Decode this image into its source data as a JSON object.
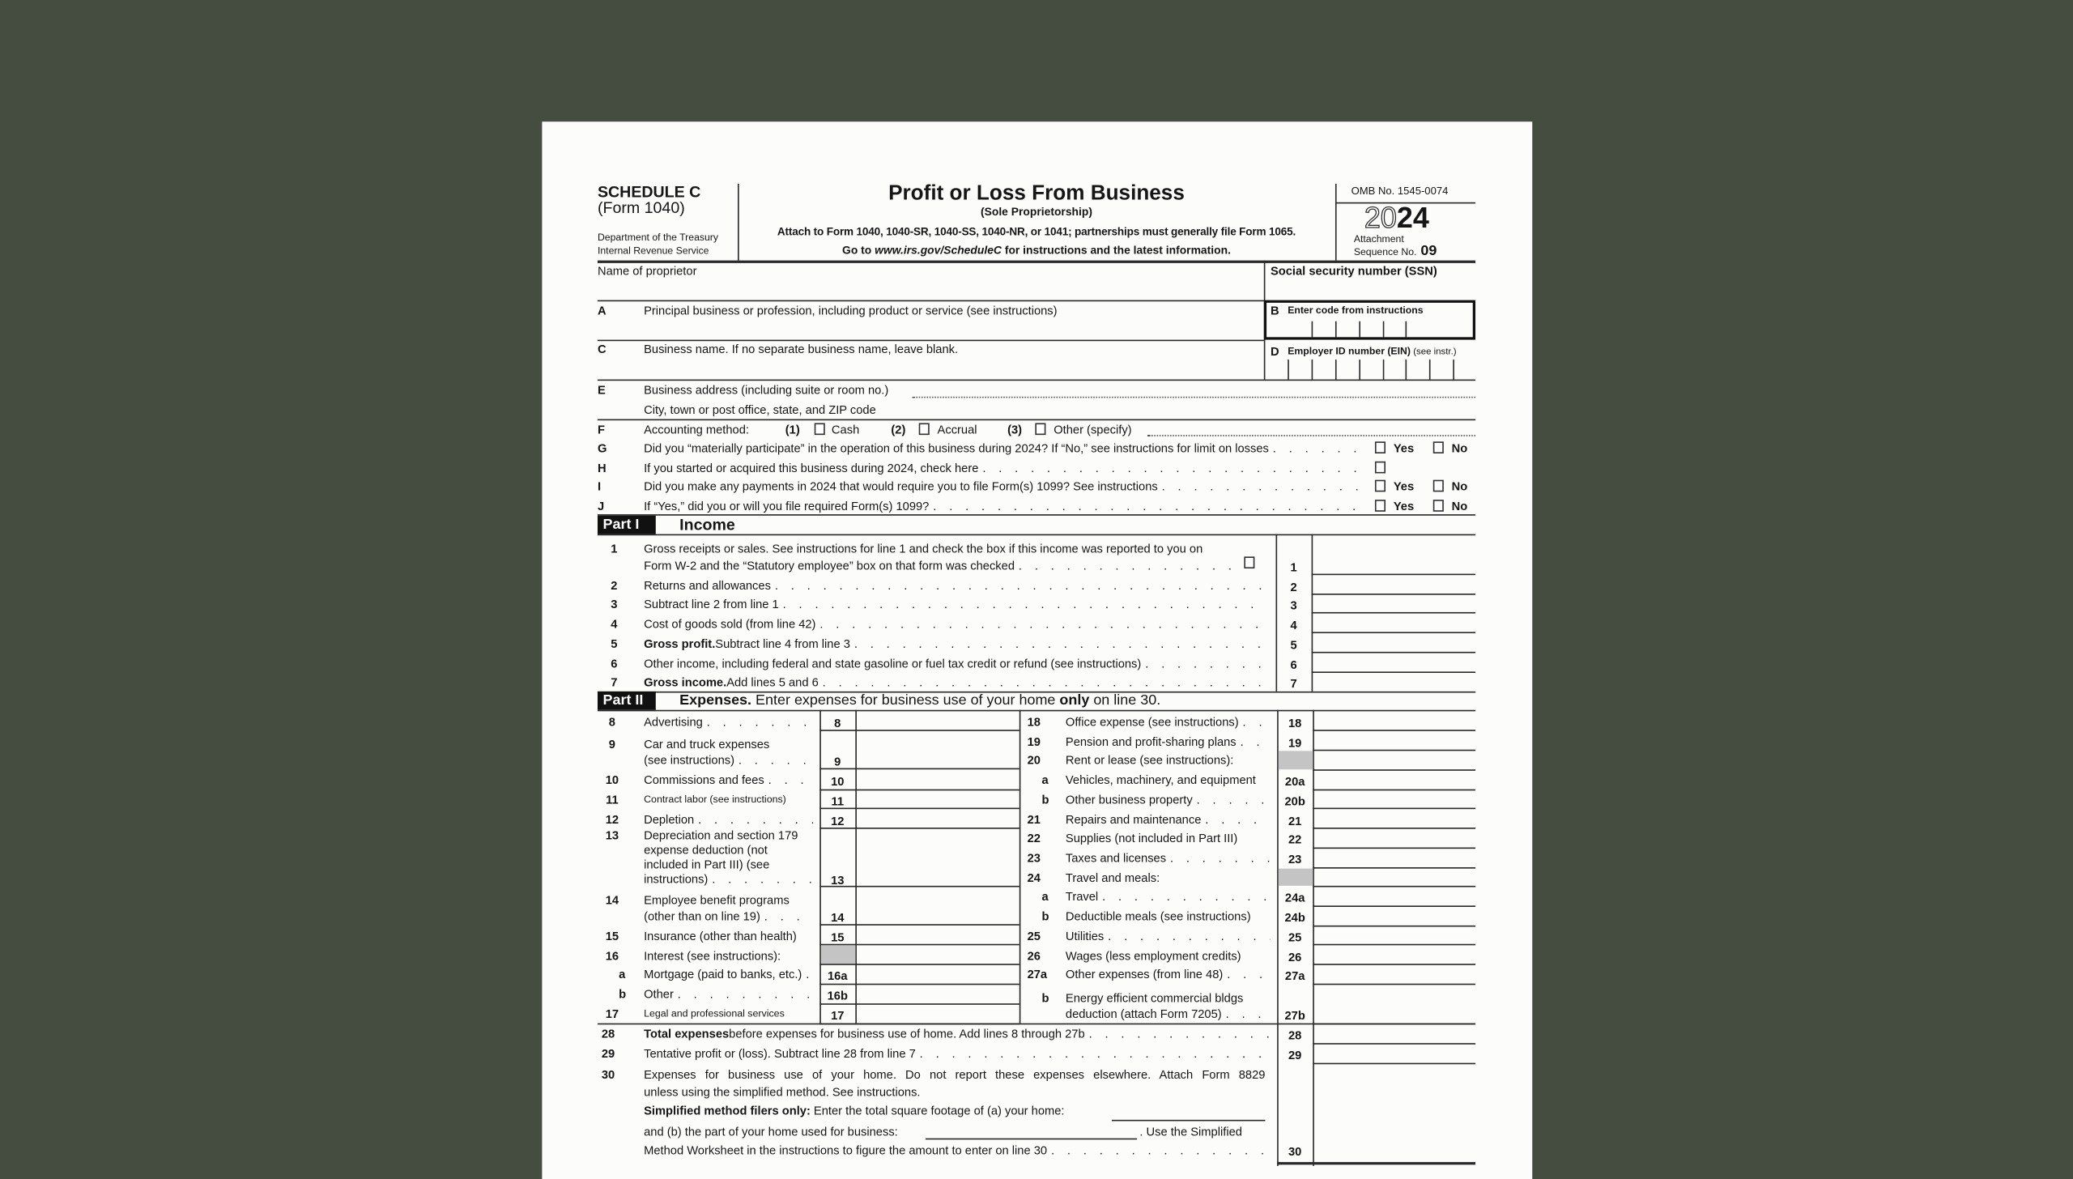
{
  "header": {
    "schedule": "SCHEDULE C",
    "form_number": "(Form 1040)",
    "dept": "Department of the Treasury",
    "irs": "Internal Revenue Service",
    "title": "Profit or Loss From Business",
    "subtitle": "(Sole Proprietorship)",
    "attach": "Attach to Form 1040, 1040-SR, 1040-SS, 1040-NR, or 1041; partnerships must generally file Form 1065.",
    "goto_prefix": "Go to ",
    "goto_url": "www.irs.gov/ScheduleC",
    "goto_suffix": " for instructions and the latest information.",
    "omb": "OMB No. 1545-0074",
    "year_outline": "20",
    "year_bold": "24",
    "attachment": "Attachment",
    "sequence_label": "Sequence No.",
    "sequence": "09"
  },
  "top": {
    "name_label": "Name of proprietor",
    "ssn_label": "Social security number (SSN)",
    "a_letter": "A",
    "a_label": "Principal business or profession, including product or service (see instructions)",
    "b_letter": "B",
    "b_label": "Enter code from instructions",
    "c_letter": "C",
    "c_label": "Business name. If no separate business name, leave blank.",
    "d_letter": "D",
    "d_label": "Employer ID number (EIN)",
    "d_note": "(see instr.)",
    "e_letter": "E",
    "e_label": "Business address (including suite or room no.)",
    "e_city": "City, town or post office, state, and ZIP code",
    "f_letter": "F",
    "f_label": "Accounting method:",
    "f_opts": [
      {
        "num": "(1)",
        "label": "Cash"
      },
      {
        "num": "(2)",
        "label": "Accrual"
      },
      {
        "num": "(3)",
        "label": "Other (specify)"
      }
    ],
    "questions": [
      {
        "letter": "G",
        "text": "Did you “materially participate” in the operation of this business during 2024? If “No,” see instructions for limit on losses",
        "yes": "Yes",
        "no": "No"
      },
      {
        "letter": "H",
        "text": "If you started or acquired this business during 2024, check here"
      },
      {
        "letter": "I",
        "text": "Did you make any payments in 2024 that would require you to file Form(s) 1099? See instructions",
        "yes": "Yes",
        "no": "No"
      },
      {
        "letter": "J",
        "text": "If “Yes,” did you or will you file required Form(s) 1099?",
        "yes": "Yes",
        "no": "No"
      }
    ]
  },
  "part1": {
    "tag": "Part I",
    "title": "Income",
    "lines": [
      {
        "num": "1",
        "text": "Gross receipts or sales. See instructions for line 1 and check the box if this income was reported to you on",
        "text2": "Form W-2 and the “Statutory employee” box on that form was checked",
        "box": "1"
      },
      {
        "num": "2",
        "text": "Returns and allowances",
        "box": "2"
      },
      {
        "num": "3",
        "text": "Subtract line 2 from line 1",
        "box": "3"
      },
      {
        "num": "4",
        "text": "Cost of goods sold (from line 42)",
        "box": "4"
      },
      {
        "num": "5",
        "bold": "Gross profit.",
        "text": " Subtract line 4 from line 3",
        "box": "5"
      },
      {
        "num": "6",
        "text": "Other income, including federal and state gasoline or fuel tax credit or refund (see instructions)",
        "box": "6"
      },
      {
        "num": "7",
        "bold": "Gross income.",
        "text": " Add lines 5 and 6",
        "box": "7"
      }
    ]
  },
  "part2": {
    "tag": "Part II",
    "title_bold": "Expenses.",
    "title_rest": " Enter expenses for business use of your home ",
    "title_only": "only",
    "title_end": " on line 30.",
    "left": [
      {
        "num": "8",
        "lines": [
          "Advertising"
        ],
        "box": "8"
      },
      {
        "num": "9",
        "lines": [
          "Car and truck expenses",
          "(see instructions)"
        ],
        "box": "9"
      },
      {
        "num": "10",
        "lines": [
          "Commissions and fees"
        ],
        "box": "10"
      },
      {
        "num": "11",
        "lines": [
          "Contract labor (see instructions)"
        ],
        "box": "11"
      },
      {
        "num": "12",
        "lines": [
          "Depletion"
        ],
        "box": "12"
      },
      {
        "num": "13",
        "lines": [
          "Depreciation and section 179",
          "expense deduction (not",
          "included in Part III) (see",
          "instructions)"
        ],
        "box": "13"
      },
      {
        "num": "14",
        "lines": [
          "Employee benefit programs",
          "(other than on line 19)"
        ],
        "box": "14"
      },
      {
        "num": "15",
        "lines": [
          "Insurance (other than health)"
        ],
        "box": "15"
      },
      {
        "num": "16",
        "lines": [
          "Interest (see instructions):"
        ],
        "box": ""
      },
      {
        "num": "a",
        "lines": [
          "Mortgage (paid to banks, etc.)"
        ],
        "box": "16a"
      },
      {
        "num": "b",
        "lines": [
          "Other"
        ],
        "box": "16b"
      },
      {
        "num": "17",
        "lines": [
          "Legal and professional services"
        ],
        "box": "17"
      }
    ],
    "right": [
      {
        "num": "18",
        "lines": [
          "Office expense (see instructions)"
        ],
        "box": "18"
      },
      {
        "num": "19",
        "lines": [
          "Pension and profit-sharing plans"
        ],
        "box": "19"
      },
      {
        "num": "20",
        "lines": [
          "Rent or lease (see instructions):"
        ],
        "box": ""
      },
      {
        "num": "a",
        "lines": [
          "Vehicles, machinery, and equipment"
        ],
        "box": "20a"
      },
      {
        "num": "b",
        "lines": [
          "Other business property"
        ],
        "box": "20b"
      },
      {
        "num": "21",
        "lines": [
          "Repairs and maintenance"
        ],
        "box": "21"
      },
      {
        "num": "22",
        "lines": [
          "Supplies (not included in Part III)"
        ],
        "box": "22"
      },
      {
        "num": "23",
        "lines": [
          "Taxes and licenses"
        ],
        "box": "23"
      },
      {
        "num": "24",
        "lines": [
          "Travel and meals:"
        ],
        "box": ""
      },
      {
        "num": "a",
        "lines": [
          "Travel"
        ],
        "box": "24a"
      },
      {
        "num": "b",
        "lines": [
          "Deductible meals (see instructions)"
        ],
        "box": "24b"
      },
      {
        "num": "25",
        "lines": [
          "Utilities"
        ],
        "box": "25"
      },
      {
        "num": "26",
        "lines": [
          "Wages (less employment credits)"
        ],
        "box": "26"
      },
      {
        "num": "27a",
        "lines": [
          "Other expenses (from line 48)"
        ],
        "box": "27a"
      },
      {
        "num": "b",
        "lines": [
          "Energy efficient commercial bldgs",
          "deduction (attach Form 7205)"
        ],
        "box": "27b"
      }
    ],
    "line28": {
      "num": "28",
      "bold": "Total expenses",
      "text": " before expenses for business use of home. Add lines 8 through 27b",
      "box": "28"
    },
    "line29": {
      "num": "29",
      "text": "Tentative profit or (loss). Subtract line 28 from line 7",
      "box": "29"
    },
    "line30": {
      "num": "30",
      "text1": "Expenses for business use of your home. Do not report these expenses elsewhere. Attach Form 8829",
      "text2": "unless using the simplified method. See instructions.",
      "bold3": "Simplified method filers only:",
      "text3": " Enter the total square footage of (a) your home:",
      "text4a": "and (b) the part of your home used for business:",
      "text4b": ". Use the Simplified",
      "text5": "Method Worksheet in the instructions to figure the amount to enter on line 30",
      "box": "30"
    }
  }
}
